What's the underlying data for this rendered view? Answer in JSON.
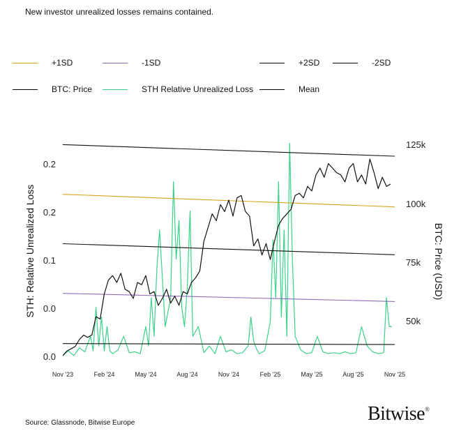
{
  "subtitle": "New investor unrealized losses remains contained.",
  "source": "Source: Glassnode, Bitwise Europe",
  "logo": "Bitwise",
  "logo_mark": "®",
  "legend": [
    {
      "label": "+1SD",
      "color": "#d9a21b"
    },
    {
      "label": "-1SD",
      "color": "#8e6ab3"
    },
    {
      "label": "+2SD",
      "color": "#111111"
    },
    {
      "label": "-2SD",
      "color": "#111111"
    },
    {
      "label": "BTC: Price",
      "color": "#111111"
    },
    {
      "label": "STH Relative Unrealized Loss",
      "color": "#3cd18a"
    },
    {
      "label": "Mean",
      "color": "#111111"
    }
  ],
  "chart_data": {
    "type": "line",
    "title": "New investor unrealized losses remains contained.",
    "xlabel": "",
    "ylabel_left": "STH: Relative Unrealized Loss",
    "ylabel_right": "BTC: Price (USD)",
    "x_ticks": [
      "Nov '23",
      "Feb '24",
      "May '24",
      "Aug '24",
      "Nov '24",
      "Feb '25",
      "May '25",
      "Aug '25",
      "Nov '25"
    ],
    "y_left_ticks": [
      "0.2",
      "0.2",
      "0.1",
      "0.0",
      "0.0"
    ],
    "y_left_range": [
      0.0,
      0.2
    ],
    "y_right_ticks": [
      "125k",
      "100k",
      "75k",
      "50k"
    ],
    "y_right_range": [
      35000,
      128000
    ],
    "x_range": [
      0,
      24
    ],
    "series": [
      {
        "name": "BTC: Price",
        "axis": "right",
        "color": "#111111",
        "x": [
          0,
          0.3,
          0.6,
          0.9,
          1.2,
          1.5,
          1.8,
          2.1,
          2.4,
          2.7,
          3.0,
          3.3,
          3.6,
          3.9,
          4.2,
          4.5,
          4.8,
          5.1,
          5.4,
          5.7,
          6.0,
          6.3,
          6.6,
          6.9,
          7.2,
          7.5,
          7.8,
          8.1,
          8.4,
          8.7,
          9.0,
          9.3,
          9.6,
          9.9,
          10.2,
          10.5,
          10.8,
          11.1,
          11.4,
          11.7,
          12.0,
          12.3,
          12.6,
          12.9,
          13.2,
          13.5,
          13.8,
          14.1,
          14.4,
          14.7,
          15.0,
          15.3,
          15.6,
          15.9,
          16.2,
          16.5,
          16.8,
          17.1,
          17.4,
          17.7,
          18.0,
          18.3,
          18.6,
          18.9,
          19.2,
          19.5,
          19.8,
          20.1,
          20.4,
          20.7,
          21.0,
          21.3,
          21.6,
          21.9,
          22.2,
          22.5,
          22.8,
          23.1,
          23.4,
          23.7
        ],
        "values": [
          35000,
          37000,
          38000,
          39000,
          42000,
          44000,
          43000,
          44000,
          52000,
          51000,
          62000,
          68000,
          70000,
          67000,
          71000,
          64000,
          63000,
          60000,
          67000,
          66000,
          70000,
          62000,
          63000,
          57000,
          60000,
          64000,
          58000,
          61000,
          57000,
          63000,
          62000,
          67000,
          69000,
          72000,
          85000,
          91000,
          97000,
          94000,
          101000,
          98000,
          103000,
          96000,
          104000,
          105000,
          98000,
          96000,
          83000,
          86000,
          79000,
          84000,
          77000,
          85000,
          92000,
          95000,
          97000,
          99000,
          105000,
          106000,
          104000,
          109000,
          107000,
          114000,
          117000,
          113000,
          119000,
          117000,
          115000,
          114000,
          111000,
          117000,
          119000,
          111000,
          114000,
          110000,
          121000,
          115000,
          108000,
          113000,
          109000,
          110000
        ]
      },
      {
        "name": "STH Relative Unrealized Loss",
        "axis": "left",
        "color": "#3cd18a",
        "x": [
          0,
          0.4,
          0.8,
          1.2,
          1.6,
          2.0,
          2.2,
          2.4,
          2.6,
          2.8,
          3.0,
          3.2,
          3.4,
          3.6,
          4.0,
          4.4,
          4.8,
          5.2,
          5.6,
          6.0,
          6.2,
          6.4,
          6.6,
          6.8,
          7.0,
          7.4,
          7.8,
          8.0,
          8.2,
          8.4,
          8.6,
          8.8,
          9.0,
          9.2,
          9.4,
          9.8,
          10.2,
          10.6,
          11.0,
          11.4,
          11.8,
          12.2,
          12.6,
          13.0,
          13.4,
          13.6,
          13.8,
          14.0,
          14.2,
          14.6,
          15.0,
          15.2,
          15.4,
          15.6,
          15.8,
          16.0,
          16.2,
          16.4,
          16.6,
          16.8,
          17.2,
          17.6,
          18.0,
          18.4,
          18.8,
          19.2,
          19.6,
          20.0,
          20.4,
          20.8,
          21.2,
          21.6,
          22.0,
          22.4,
          22.8,
          23.2,
          23.4,
          23.6,
          23.8
        ],
        "values": [
          0.0,
          0.005,
          0.0,
          0.008,
          0.004,
          0.02,
          0.005,
          0.05,
          0.01,
          0.04,
          0.005,
          0.03,
          0.005,
          0.002,
          0.006,
          0.02,
          0.003,
          0.004,
          0.002,
          0.03,
          0.01,
          0.06,
          0.02,
          0.09,
          0.13,
          0.03,
          0.06,
          0.18,
          0.1,
          0.14,
          0.05,
          0.03,
          0.07,
          0.15,
          0.02,
          0.03,
          0.003,
          0.01,
          0.002,
          0.02,
          0.004,
          0.006,
          0.002,
          0.003,
          0.01,
          0.04,
          0.015,
          0.007,
          0.002,
          0.005,
          0.035,
          0.12,
          0.06,
          0.18,
          0.04,
          0.13,
          0.02,
          0.22,
          0.1,
          0.02,
          0.006,
          0.002,
          0.003,
          0.02,
          0.004,
          0.002,
          0.003,
          0.002,
          0.004,
          0.002,
          0.003,
          0.03,
          0.01,
          0.004,
          0.002,
          0.003,
          0.06,
          0.03,
          0.03
        ]
      },
      {
        "name": "+2SD",
        "axis": "left",
        "color": "#111111",
        "x": [
          0,
          24
        ],
        "values": [
          0.2185,
          0.2065
        ]
      },
      {
        "name": "+1SD",
        "axis": "left",
        "color": "#d9a21b",
        "x": [
          0,
          24
        ],
        "values": [
          0.167,
          0.154
        ]
      },
      {
        "name": "Mean",
        "axis": "left",
        "color": "#111111",
        "x": [
          0,
          24
        ],
        "values": [
          0.1159,
          0.1045
        ]
      },
      {
        "name": "-1SD",
        "axis": "left",
        "color": "#8e6ab3",
        "x": [
          0,
          24
        ],
        "values": [
          0.0645,
          0.056
        ]
      },
      {
        "name": "-2SD",
        "axis": "left",
        "color": "#111111",
        "x": [
          0,
          24
        ],
        "values": [
          0.0125,
          0.0115
        ]
      }
    ]
  }
}
